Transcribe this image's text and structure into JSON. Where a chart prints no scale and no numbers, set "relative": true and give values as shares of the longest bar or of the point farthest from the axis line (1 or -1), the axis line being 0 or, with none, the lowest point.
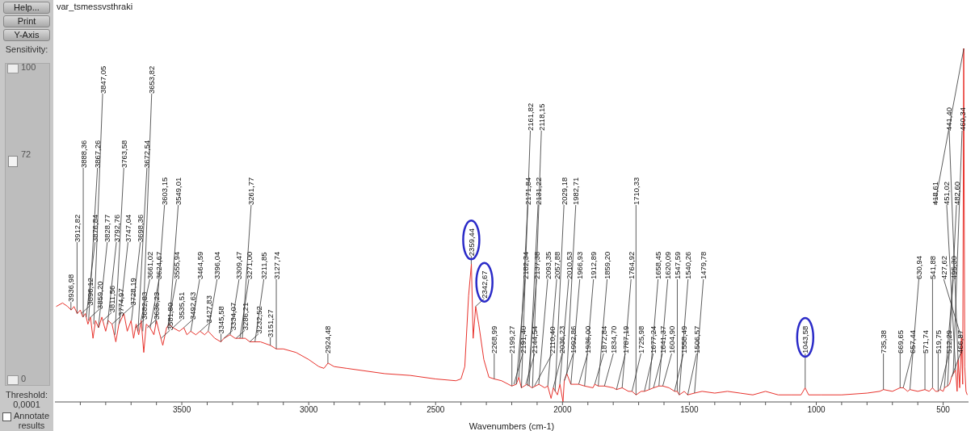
{
  "chart_data": {
    "type": "line",
    "title": "var_tsmessvsthraki",
    "xlabel": "Wavenumbers (cm-1)",
    "relative": true,
    "legend": false,
    "grid": false,
    "marker": "none",
    "xlim": [
      4000,
      400
    ],
    "xticks": [
      {
        "value": 3900,
        "label": null
      },
      {
        "value": 3800,
        "label": null
      },
      {
        "value": 3700,
        "label": null
      },
      {
        "value": 3600,
        "label": null
      },
      3500,
      {
        "value": 3400,
        "label": null
      },
      {
        "value": 3300,
        "label": null
      },
      {
        "value": 3200,
        "label": null
      },
      {
        "value": 3100,
        "label": null
      },
      3000,
      {
        "value": 2900,
        "label": null
      },
      {
        "value": 2800,
        "label": null
      },
      {
        "value": 2700,
        "label": null
      },
      {
        "value": 2600,
        "label": null
      },
      2500,
      {
        "value": 2400,
        "label": null
      },
      {
        "value": 2300,
        "label": null
      },
      {
        "value": 2200,
        "label": null
      },
      {
        "value": 2100,
        "label": null
      },
      2000,
      {
        "value": 1900,
        "label": null
      },
      {
        "value": 1800,
        "label": null
      },
      {
        "value": 1700,
        "label": null
      },
      {
        "value": 1600,
        "label": null
      },
      1500,
      {
        "value": 1400,
        "label": null
      },
      {
        "value": 1300,
        "label": null
      },
      {
        "value": 1200,
        "label": null
      },
      {
        "value": 1100,
        "label": null
      },
      1000,
      {
        "value": 900,
        "label": null
      },
      {
        "value": 800,
        "label": null
      },
      {
        "value": 700,
        "label": null
      },
      {
        "value": 600,
        "label": null
      },
      500
    ],
    "series": [
      {
        "color": "#e8322c",
        "x": [
          3995,
          3970,
          3950,
          3936,
          3925,
          3912,
          3900,
          3890,
          3880,
          3870,
          3860,
          3850,
          3840,
          3828,
          3815,
          3800,
          3790,
          3775,
          3760,
          3748,
          3728,
          3715,
          3700,
          3690,
          3680,
          3670,
          3660,
          3650,
          3640,
          3625,
          3610,
          3600,
          3590,
          3575,
          3560,
          3550,
          3535,
          3510,
          3492,
          3480,
          3465,
          3445,
          3428,
          3410,
          3396,
          3370,
          3346,
          3334,
          3310,
          3290,
          3271,
          3250,
          3232,
          3212,
          3190,
          3151,
          3128,
          3100,
          3050,
          3000,
          2960,
          2940,
          2924,
          2900,
          2850,
          2800,
          2700,
          2600,
          2500,
          2420,
          2400,
          2385,
          2370,
          2359,
          2352,
          2342,
          2330,
          2310,
          2290,
          2269,
          2240,
          2200,
          2182,
          2172,
          2162,
          2140,
          2120,
          2093,
          2070,
          2058,
          2045,
          2036,
          2020,
          2010,
          1998,
          1993,
          1983,
          1967,
          1950,
          1936,
          1913,
          1880,
          1873,
          1859,
          1835,
          1800,
          1787,
          1765,
          1740,
          1726,
          1710,
          1690,
          1677,
          1658,
          1641,
          1620,
          1605,
          1580,
          1558,
          1548,
          1540,
          1520,
          1507,
          1480,
          1450,
          1400,
          1350,
          1300,
          1250,
          1200,
          1150,
          1100,
          1060,
          1044,
          1030,
          980,
          900,
          800,
          750,
          735,
          700,
          670,
          657,
          640,
          631,
          600,
          572,
          555,
          542,
          530,
          520,
          512,
          500,
          495,
          483,
          475,
          467,
          460,
          451,
          445,
          441,
          435,
          428,
          423,
          419,
          415,
          410,
          405
        ],
        "values": [
          0.27,
          0.28,
          0.27,
          0.26,
          0.27,
          0.25,
          0.26,
          0.24,
          0.25,
          0.22,
          0.24,
          0.18,
          0.23,
          0.21,
          0.24,
          0.2,
          0.23,
          0.22,
          0.17,
          0.22,
          0.25,
          0.2,
          0.23,
          0.18,
          0.22,
          0.19,
          0.23,
          0.14,
          0.22,
          0.21,
          0.19,
          0.23,
          0.2,
          0.16,
          0.21,
          0.22,
          0.21,
          0.2,
          0.21,
          0.19,
          0.2,
          0.19,
          0.2,
          0.19,
          0.2,
          0.18,
          0.17,
          0.18,
          0.19,
          0.18,
          0.18,
          0.18,
          0.17,
          0.17,
          0.17,
          0.16,
          0.15,
          0.15,
          0.14,
          0.12,
          0.1,
          0.095,
          0.11,
          0.1,
          0.095,
          0.09,
          0.08,
          0.075,
          0.065,
          0.06,
          0.065,
          0.1,
          0.3,
          0.39,
          0.18,
          0.27,
          0.22,
          0.12,
          0.07,
          0.065,
          0.06,
          0.045,
          0.05,
          0.07,
          0.04,
          0.05,
          0.04,
          0.05,
          0.04,
          0.045,
          0.01,
          0.04,
          0.02,
          0.05,
          0,
          0.06,
          0.08,
          0.05,
          0.05,
          0.05,
          0.045,
          0.04,
          0.05,
          0.045,
          0.045,
          0.04,
          0.035,
          0.04,
          0.03,
          0.03,
          0.02,
          0.03,
          0.03,
          0.035,
          0.04,
          0.045,
          0.045,
          0.04,
          0.03,
          0.03,
          0.02,
          0.03,
          0.02,
          0.025,
          0.03,
          0.025,
          0.03,
          0.025,
          0.02,
          0.03,
          0.02,
          0.02,
          0.02,
          0.04,
          0.02,
          0.02,
          0.02,
          0.025,
          0.03,
          0.035,
          0.03,
          0.04,
          0.04,
          0.03,
          0.035,
          0.03,
          0.035,
          0.03,
          0.04,
          0.03,
          0.03,
          0.035,
          0.03,
          0.04,
          0.045,
          0.05,
          0.07,
          0.08,
          0.09,
          0.03,
          0.12,
          0.04,
          0.18,
          0.05,
          1,
          0.1,
          0.03,
          0.02
        ]
      }
    ],
    "annotations": [
      "Help...",
      "Print",
      "Y-Axis",
      "Sensitivity:",
      "100",
      "72",
      "0",
      "Threshold:",
      "0,0001",
      "Annotate results",
      {
        "text": "3936,98",
        "x": 3936.98,
        "y": 0.26
      },
      {
        "text": "3912,82",
        "x": 3912.82,
        "y": 0.25
      },
      {
        "text": "3896,12",
        "x": 3896.12,
        "y": 0.25
      },
      {
        "text": "3888,36",
        "x": 3888.36,
        "y": 0.24
      },
      {
        "text": "3876,84",
        "x": 3876.84,
        "y": 0.24
      },
      {
        "text": "3867,26",
        "x": 3867.26,
        "y": 0.23
      },
      {
        "text": "3859,20",
        "x": 3859.2,
        "y": 0.24
      },
      {
        "text": "3847,05",
        "x": 3847.05,
        "y": 0.22
      },
      {
        "text": "3828,77",
        "x": 3828.77,
        "y": 0.21
      },
      {
        "text": "3811,56",
        "x": 3811.56,
        "y": 0.23
      },
      {
        "text": "3792,76",
        "x": 3792.76,
        "y": 0.22
      },
      {
        "text": "3774,97",
        "x": 3774.97,
        "y": 0.22
      },
      {
        "text": "3763,58",
        "x": 3763.58,
        "y": 0.19
      },
      {
        "text": "3747,04",
        "x": 3747.04,
        "y": 0.22
      },
      {
        "text": "3728,19",
        "x": 3728.19,
        "y": 0.25
      },
      {
        "text": "3698,36",
        "x": 3698.36,
        "y": 0.23
      },
      {
        "text": "3682,83",
        "x": 3682.83,
        "y": 0.21
      },
      {
        "text": "3672,54",
        "x": 3672.54,
        "y": 0.2
      },
      {
        "text": "3661,02",
        "x": 3661.02,
        "y": 0.23
      },
      {
        "text": "3653,82",
        "x": 3653.82,
        "y": 0.2
      },
      {
        "text": "3636,23",
        "x": 3636.23,
        "y": 0.21
      },
      {
        "text": "3624,67",
        "x": 3624.67,
        "y": 0.21
      },
      {
        "text": "3603,15",
        "x": 3603.15,
        "y": 0.22
      },
      {
        "text": "3581,80",
        "x": 3581.8,
        "y": 0.18
      },
      {
        "text": "3555,94",
        "x": 3555.94,
        "y": 0.21
      },
      {
        "text": "3549,01",
        "x": 3549.01,
        "y": 0.22
      },
      {
        "text": "3535,51",
        "x": 3535.51,
        "y": 0.21
      },
      {
        "text": "3492,63",
        "x": 3492.63,
        "y": 0.21
      },
      {
        "text": "3464,59",
        "x": 3464.59,
        "y": 0.2
      },
      {
        "text": "3427,83",
        "x": 3427.83,
        "y": 0.2
      },
      {
        "text": "3396,04",
        "x": 3396.04,
        "y": 0.2
      },
      {
        "text": "3345,58",
        "x": 3345.58,
        "y": 0.17
      },
      {
        "text": "3334,07",
        "x": 3334.07,
        "y": 0.18
      },
      {
        "text": "3309,47",
        "x": 3309.47,
        "y": 0.19
      },
      {
        "text": "3286,21",
        "x": 3286.21,
        "y": 0.18
      },
      {
        "text": "3271,00",
        "x": 3271.0,
        "y": 0.18
      },
      {
        "text": "3261,77",
        "x": 3261.77,
        "y": 0.18
      },
      {
        "text": "3232,52",
        "x": 3232.52,
        "y": 0.17
      },
      {
        "text": "3211,85",
        "x": 3211.85,
        "y": 0.17
      },
      {
        "text": "3151,27",
        "x": 3151.27,
        "y": 0.16
      },
      {
        "text": "3127,74",
        "x": 3127.74,
        "y": 0.15
      },
      {
        "text": "2924,48",
        "x": 2924.48,
        "y": 0.11
      },
      {
        "text": "2359,44",
        "x": 2359.44,
        "y": 0.39
      },
      {
        "text": "2342,67",
        "x": 2342.67,
        "y": 0.27
      },
      {
        "text": "2268,99",
        "x": 2268.99,
        "y": 0.065
      },
      {
        "text": "2199,27",
        "x": 2199.27,
        "y": 0.045
      },
      {
        "text": "2191,40",
        "x": 2191.4,
        "y": 0.05
      },
      {
        "text": "2182,34",
        "x": 2182.34,
        "y": 0.05
      },
      {
        "text": "2171,84",
        "x": 2171.84,
        "y": 0.07
      },
      {
        "text": "2161,82",
        "x": 2161.82,
        "y": 0.04
      },
      {
        "text": "2144,54",
        "x": 2144.54,
        "y": 0.05
      },
      {
        "text": "2137,38",
        "x": 2137.38,
        "y": 0.045
      },
      {
        "text": "2131,22",
        "x": 2131.22,
        "y": 0.045
      },
      {
        "text": "2118,15",
        "x": 2118.15,
        "y": 0.04
      },
      {
        "text": "2110,40",
        "x": 2110.4,
        "y": 0.045
      },
      {
        "text": "2093,35",
        "x": 2093.35,
        "y": 0.05
      },
      {
        "text": "2057,88",
        "x": 2057.88,
        "y": 0.045
      },
      {
        "text": "2036,23",
        "x": 2036.23,
        "y": 0.04
      },
      {
        "text": "2029,18",
        "x": 2029.18,
        "y": 0.03
      },
      {
        "text": "2010,53",
        "x": 2010.53,
        "y": 0.05
      },
      {
        "text": "1992,86",
        "x": 1992.86,
        "y": 0.06
      },
      {
        "text": "1982,71",
        "x": 1982.71,
        "y": 0.08
      },
      {
        "text": "1966,93",
        "x": 1966.93,
        "y": 0.05
      },
      {
        "text": "1936,00",
        "x": 1936.0,
        "y": 0.05
      },
      {
        "text": "1912,89",
        "x": 1912.89,
        "y": 0.045
      },
      {
        "text": "1872,84",
        "x": 1872.84,
        "y": 0.05
      },
      {
        "text": "1859,20",
        "x": 1859.2,
        "y": 0.045
      },
      {
        "text": "1834,70",
        "x": 1834.7,
        "y": 0.045
      },
      {
        "text": "1787,19",
        "x": 1787.19,
        "y": 0.035
      },
      {
        "text": "1764,92",
        "x": 1764.92,
        "y": 0.04
      },
      {
        "text": "1725,98",
        "x": 1725.98,
        "y": 0.03
      },
      {
        "text": "1710,33",
        "x": 1710.33,
        "y": 0.02
      },
      {
        "text": "1677,24",
        "x": 1677.24,
        "y": 0.03
      },
      {
        "text": "1658,45",
        "x": 1658.45,
        "y": 0.035
      },
      {
        "text": "1641,37",
        "x": 1641.37,
        "y": 0.04
      },
      {
        "text": "1620,09",
        "x": 1620.09,
        "y": 0.045
      },
      {
        "text": "1604,90",
        "x": 1604.9,
        "y": 0.045
      },
      {
        "text": "1558,49",
        "x": 1558.49,
        "y": 0.03
      },
      {
        "text": "1547,59",
        "x": 1547.59,
        "y": 0.03
      },
      {
        "text": "1540,26",
        "x": 1540.26,
        "y": 0.02
      },
      {
        "text": "1506,57",
        "x": 1506.57,
        "y": 0.02
      },
      {
        "text": "1479,78",
        "x": 1479.78,
        "y": 0.025
      },
      {
        "text": "1043,58",
        "x": 1043.58,
        "y": 0.04
      },
      {
        "text": "735,38",
        "x": 735.38,
        "y": 0.035
      },
      {
        "text": "669,65",
        "x": 669.65,
        "y": 0.04
      },
      {
        "text": "657,44",
        "x": 657.44,
        "y": 0.04
      },
      {
        "text": "630,94",
        "x": 630.94,
        "y": 0.035
      },
      {
        "text": "571,74",
        "x": 571.74,
        "y": 0.035
      },
      {
        "text": "541,88",
        "x": 541.88,
        "y": 0.04
      },
      {
        "text": "519,75",
        "x": 519.75,
        "y": 0.03
      },
      {
        "text": "512,29",
        "x": 512.29,
        "y": 0.035
      },
      {
        "text": "495,30",
        "x": 495.3,
        "y": 0.04
      },
      {
        "text": "482,60",
        "x": 482.6,
        "y": 0.045
      },
      {
        "text": "466,87",
        "x": 466.87,
        "y": 0.07
      },
      {
        "text": "460,34",
        "x": 460.34,
        "y": 0.08
      },
      {
        "text": "451,02",
        "x": 451.02,
        "y": 0.09
      },
      {
        "text": "441,40",
        "x": 441.4,
        "y": 0.12
      },
      {
        "text": "427,62",
        "x": 427.62,
        "y": 0.18
      },
      {
        "text": "418,61",
        "x": 418.61,
        "y": 1
      }
    ]
  }
}
